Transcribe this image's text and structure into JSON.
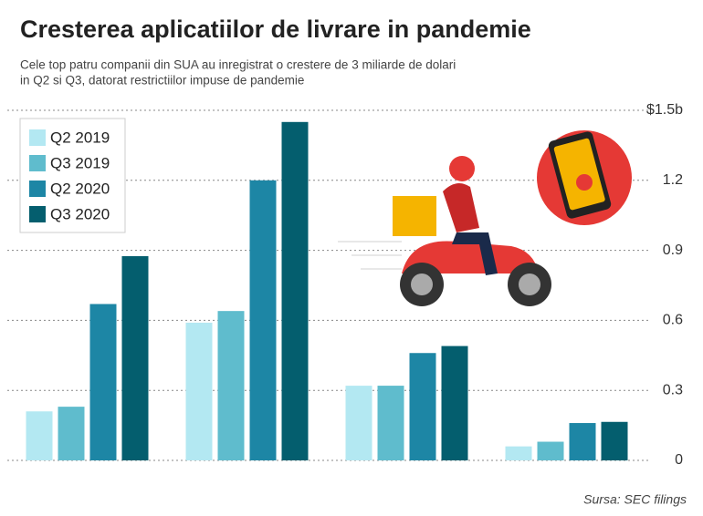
{
  "chart_data": {
    "type": "bar",
    "title": "Cresterea aplicatiilor de livrare in pandemie",
    "subtitle": [
      "Cele top patru companii din SUA au inregistrat o crestere de 3 miliarde de dolari",
      "in Q2 si Q3, datorat restrictiilor impuse de pandemie"
    ],
    "source": "Sursa: SEC filings",
    "categories": [
      null,
      null,
      null,
      null
    ],
    "series": [
      {
        "name": "Q2 2019",
        "color": "#b3e8f2",
        "values": [
          0.21,
          0.59,
          0.32,
          0.06
        ]
      },
      {
        "name": "Q3 2019",
        "color": "#5fbccd",
        "values": [
          0.23,
          0.64,
          0.32,
          0.08
        ]
      },
      {
        "name": "Q2 2020",
        "color": "#1d86a5",
        "values": [
          0.67,
          1.2,
          0.46,
          0.16
        ]
      },
      {
        "name": "Q3 2020",
        "color": "#045e6e",
        "values": [
          0.875,
          1.45,
          0.49,
          0.165
        ]
      }
    ],
    "ylim": [
      0,
      1.5
    ],
    "yticks": [
      0,
      0.3,
      0.6,
      0.9,
      1.2,
      {
        "value": 1.5,
        "label": "$1.5b"
      }
    ],
    "grid": true,
    "legend": "top-left"
  }
}
